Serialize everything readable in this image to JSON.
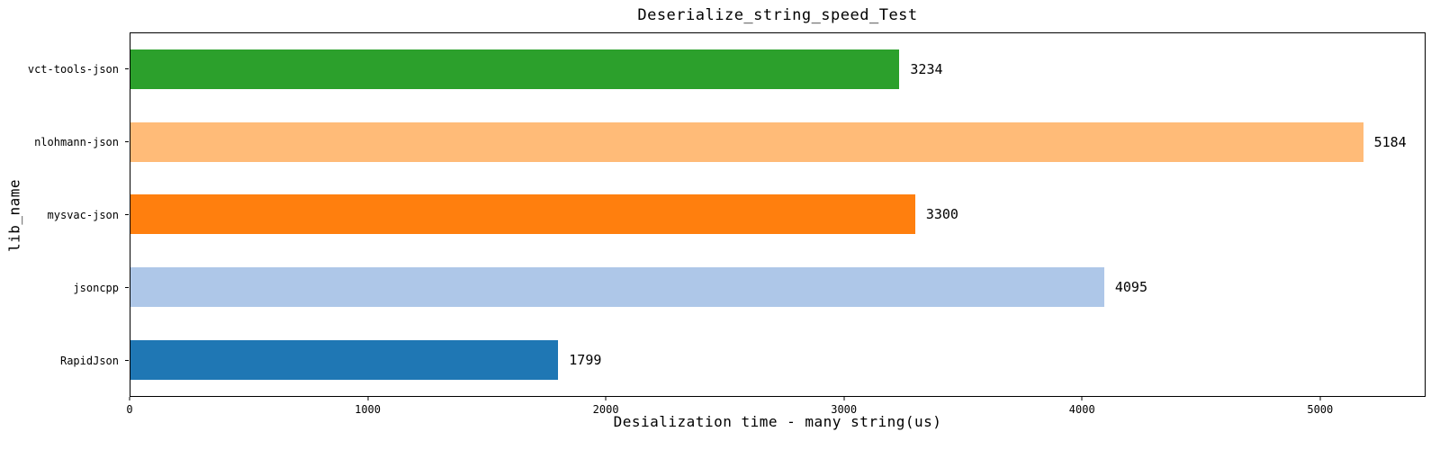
{
  "chart_data": {
    "type": "bar",
    "orientation": "horizontal",
    "title": "Deserialize_string_speed_Test",
    "xlabel": "Desialization time - many string(us)",
    "ylabel": "lib_name",
    "categories": [
      "vct-tools-json",
      "nlohmann-json",
      "mysvac-json",
      "jsoncpp",
      "RapidJson"
    ],
    "values": [
      3234,
      5184,
      3300,
      4095,
      1799
    ],
    "value_labels": [
      "3234",
      "5184",
      "3300",
      "4095",
      "1799"
    ],
    "bar_colors": [
      "#2ca02c",
      "#ffbb78",
      "#ff7f0e",
      "#aec7e8",
      "#1f77b4"
    ],
    "xlim": [
      0,
      5443
    ],
    "xticks": [
      0,
      1000,
      2000,
      3000,
      4000,
      5000
    ],
    "xtick_labels": [
      "0",
      "1000",
      "2000",
      "3000",
      "4000",
      "5000"
    ],
    "grid": false,
    "legend": null,
    "spine_color": "#000000",
    "text_color": "#000000",
    "background_color": "#ffffff"
  }
}
